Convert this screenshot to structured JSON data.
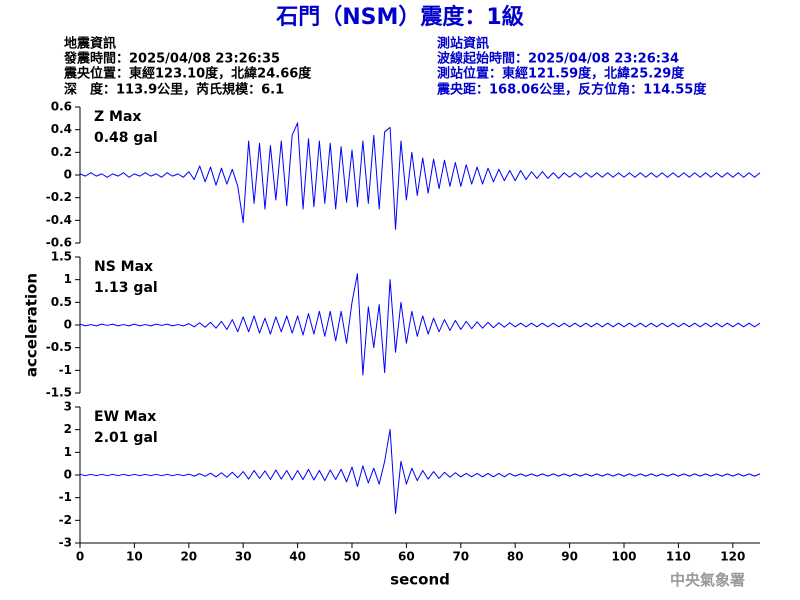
{
  "header": {
    "title": "石門（NSM）震度：1級",
    "quake_info": [
      "地震資訊",
      "發震時間：2025/04/08 23:26:35",
      "震央位置：東經123.10度，北緯24.66度",
      "深　度：113.9公里，芮氏規模：6.1"
    ],
    "station_info": [
      "測站資訊",
      "波線起始時間：2025/04/08 23:26:34",
      "測站位置：東經121.59度，北緯25.29度",
      "震央距：168.06公里，反方位角：114.55度"
    ]
  },
  "footer": "中央氣象署",
  "chart_data": [
    {
      "type": "line",
      "label": "Z Max",
      "max_label": "0.48 gal",
      "color": "#0000ff",
      "xlim": [
        0,
        125
      ],
      "ylim": [
        -0.6,
        0.6
      ],
      "yticks": [
        0.6,
        0.4,
        0.2,
        0,
        -0.2,
        -0.4,
        -0.6
      ],
      "x": [
        0,
        1,
        2,
        3,
        4,
        5,
        6,
        7,
        8,
        9,
        10,
        11,
        12,
        13,
        14,
        15,
        16,
        17,
        18,
        19,
        20,
        21,
        22,
        23,
        24,
        25,
        26,
        27,
        28,
        29,
        30,
        31,
        32,
        33,
        34,
        35,
        36,
        37,
        38,
        39,
        40,
        41,
        42,
        43,
        44,
        45,
        46,
        47,
        48,
        49,
        50,
        51,
        52,
        53,
        54,
        55,
        56,
        57,
        58,
        59,
        60,
        61,
        62,
        63,
        64,
        65,
        66,
        67,
        68,
        69,
        70,
        71,
        72,
        73,
        74,
        75,
        76,
        77,
        78,
        79,
        80,
        81,
        82,
        83,
        84,
        85,
        86,
        87,
        88,
        89,
        90,
        91,
        92,
        93,
        94,
        95,
        96,
        97,
        98,
        99,
        100,
        101,
        102,
        103,
        104,
        105,
        106,
        107,
        108,
        109,
        110,
        111,
        112,
        113,
        114,
        115,
        116,
        117,
        118,
        119,
        120,
        121,
        122,
        123,
        124,
        125
      ],
      "values": [
        0.01,
        -0.01,
        0.02,
        -0.01,
        0.01,
        -0.02,
        0.01,
        -0.01,
        0.02,
        -0.02,
        0.01,
        -0.01,
        0.02,
        -0.01,
        0.01,
        -0.02,
        0.02,
        -0.01,
        0.01,
        -0.02,
        0.03,
        -0.04,
        0.08,
        -0.06,
        0.07,
        -0.09,
        0.06,
        -0.08,
        0.05,
        -0.1,
        -0.42,
        0.3,
        -0.25,
        0.28,
        -0.3,
        0.26,
        -0.22,
        0.3,
        -0.27,
        0.35,
        0.46,
        -0.3,
        0.32,
        -0.28,
        0.3,
        -0.25,
        0.28,
        -0.3,
        0.25,
        -0.24,
        0.22,
        -0.28,
        0.3,
        -0.25,
        0.35,
        -0.3,
        0.38,
        0.42,
        -0.48,
        0.3,
        -0.22,
        0.2,
        -0.18,
        0.15,
        -0.16,
        0.14,
        -0.12,
        0.13,
        -0.1,
        0.11,
        -0.1,
        0.09,
        -0.08,
        0.07,
        -0.08,
        0.06,
        -0.06,
        0.05,
        -0.05,
        0.04,
        -0.05,
        0.04,
        -0.04,
        0.03,
        -0.03,
        0.03,
        -0.03,
        0.02,
        -0.03,
        0.02,
        -0.02,
        0.02,
        -0.02,
        0.02,
        -0.02,
        0.02,
        -0.02,
        0.02,
        -0.02,
        0.02,
        -0.02,
        0.02,
        -0.02,
        0.02,
        -0.02,
        0.02,
        -0.02,
        0.02,
        -0.02,
        0.02,
        -0.02,
        0.02,
        -0.02,
        0.02,
        -0.02,
        0.02,
        -0.02,
        0.02,
        -0.02,
        0.02,
        -0.02,
        0.02,
        -0.02,
        0.02,
        -0.02,
        0.02
      ]
    },
    {
      "type": "line",
      "label": "NS Max",
      "max_label": "1.13 gal",
      "color": "#0000ff",
      "ylabel": "acceleration",
      "xlim": [
        0,
        125
      ],
      "ylim": [
        -1.5,
        1.5
      ],
      "yticks": [
        1.5,
        1,
        0.5,
        0,
        -0.5,
        -1,
        -1.5
      ],
      "x": [
        0,
        1,
        2,
        3,
        4,
        5,
        6,
        7,
        8,
        9,
        10,
        11,
        12,
        13,
        14,
        15,
        16,
        17,
        18,
        19,
        20,
        21,
        22,
        23,
        24,
        25,
        26,
        27,
        28,
        29,
        30,
        31,
        32,
        33,
        34,
        35,
        36,
        37,
        38,
        39,
        40,
        41,
        42,
        43,
        44,
        45,
        46,
        47,
        48,
        49,
        50,
        51,
        52,
        53,
        54,
        55,
        56,
        57,
        58,
        59,
        60,
        61,
        62,
        63,
        64,
        65,
        66,
        67,
        68,
        69,
        70,
        71,
        72,
        73,
        74,
        75,
        76,
        77,
        78,
        79,
        80,
        81,
        82,
        83,
        84,
        85,
        86,
        87,
        88,
        89,
        90,
        91,
        92,
        93,
        94,
        95,
        96,
        97,
        98,
        99,
        100,
        101,
        102,
        103,
        104,
        105,
        106,
        107,
        108,
        109,
        110,
        111,
        112,
        113,
        114,
        115,
        116,
        117,
        118,
        119,
        120,
        121,
        122,
        123,
        124,
        125
      ],
      "values": [
        0.02,
        -0.02,
        0.01,
        -0.02,
        0.02,
        -0.01,
        0.02,
        -0.02,
        0.01,
        -0.02,
        0.02,
        -0.02,
        0.01,
        -0.02,
        0.02,
        -0.01,
        0.02,
        -0.02,
        0.01,
        -0.02,
        0.03,
        -0.04,
        0.05,
        -0.05,
        0.06,
        -0.07,
        0.08,
        -0.1,
        0.12,
        -0.15,
        0.18,
        -0.15,
        0.2,
        -0.18,
        0.15,
        -0.2,
        0.18,
        -0.15,
        0.2,
        -0.18,
        0.2,
        -0.22,
        0.25,
        -0.2,
        0.3,
        -0.25,
        0.3,
        -0.35,
        0.3,
        -0.4,
        0.5,
        1.13,
        -1.1,
        0.4,
        -0.5,
        0.45,
        -1.05,
        1.0,
        -0.6,
        0.5,
        -0.4,
        0.3,
        -0.25,
        0.2,
        -0.2,
        0.15,
        -0.15,
        0.12,
        -0.12,
        0.1,
        -0.1,
        0.08,
        -0.08,
        0.07,
        -0.07,
        0.06,
        -0.06,
        0.05,
        -0.05,
        0.05,
        -0.04,
        0.04,
        -0.04,
        0.04,
        -0.04,
        0.04,
        -0.04,
        0.04,
        -0.04,
        0.04,
        -0.04,
        0.04,
        -0.04,
        0.04,
        -0.04,
        0.04,
        -0.04,
        0.04,
        -0.04,
        0.04,
        -0.04,
        0.04,
        -0.04,
        0.04,
        -0.04,
        0.04,
        -0.04,
        0.04,
        -0.04,
        0.04,
        -0.04,
        0.04,
        -0.04,
        0.04,
        -0.04,
        0.04,
        -0.04,
        0.04,
        -0.04,
        0.04,
        -0.04,
        0.04,
        -0.04,
        0.04,
        -0.04,
        0.04
      ]
    },
    {
      "type": "line",
      "label": "EW Max",
      "max_label": "2.01 gal",
      "color": "#0000ff",
      "xlabel": "second",
      "xlim": [
        0,
        125
      ],
      "xticks": [
        0,
        10,
        20,
        30,
        40,
        50,
        60,
        70,
        80,
        90,
        100,
        110,
        120
      ],
      "ylim": [
        -3,
        3
      ],
      "yticks": [
        3,
        2,
        1,
        0,
        -1,
        -2,
        -3
      ],
      "x": [
        0,
        1,
        2,
        3,
        4,
        5,
        6,
        7,
        8,
        9,
        10,
        11,
        12,
        13,
        14,
        15,
        16,
        17,
        18,
        19,
        20,
        21,
        22,
        23,
        24,
        25,
        26,
        27,
        28,
        29,
        30,
        31,
        32,
        33,
        34,
        35,
        36,
        37,
        38,
        39,
        40,
        41,
        42,
        43,
        44,
        45,
        46,
        47,
        48,
        49,
        50,
        51,
        52,
        53,
        54,
        55,
        56,
        57,
        58,
        59,
        60,
        61,
        62,
        63,
        64,
        65,
        66,
        67,
        68,
        69,
        70,
        71,
        72,
        73,
        74,
        75,
        76,
        77,
        78,
        79,
        80,
        81,
        82,
        83,
        84,
        85,
        86,
        87,
        88,
        89,
        90,
        91,
        92,
        93,
        94,
        95,
        96,
        97,
        98,
        99,
        100,
        101,
        102,
        103,
        104,
        105,
        106,
        107,
        108,
        109,
        110,
        111,
        112,
        113,
        114,
        115,
        116,
        117,
        118,
        119,
        120,
        121,
        122,
        123,
        124,
        125
      ],
      "values": [
        0.03,
        -0.03,
        0.03,
        -0.03,
        0.03,
        -0.03,
        0.03,
        -0.03,
        0.03,
        -0.03,
        0.03,
        -0.03,
        0.03,
        -0.03,
        0.03,
        -0.03,
        0.03,
        -0.03,
        0.03,
        -0.03,
        0.04,
        -0.05,
        0.06,
        -0.06,
        0.08,
        -0.08,
        0.1,
        -0.1,
        0.12,
        -0.12,
        0.15,
        -0.18,
        0.2,
        -0.15,
        0.18,
        -0.2,
        0.22,
        -0.18,
        0.2,
        -0.22,
        0.2,
        -0.2,
        0.25,
        -0.22,
        0.2,
        -0.25,
        0.22,
        -0.2,
        0.25,
        -0.3,
        0.35,
        -0.5,
        0.4,
        -0.35,
        0.3,
        -0.4,
        0.6,
        2.01,
        -1.7,
        0.6,
        -0.4,
        0.3,
        -0.25,
        0.2,
        -0.18,
        0.15,
        -0.15,
        0.12,
        -0.1,
        0.1,
        -0.08,
        0.07,
        -0.08,
        0.07,
        -0.08,
        0.07,
        -0.08,
        0.07,
        -0.08,
        0.07,
        -0.05,
        0.05,
        -0.05,
        0.05,
        -0.05,
        0.05,
        -0.05,
        0.05,
        -0.05,
        0.05,
        -0.05,
        0.05,
        -0.05,
        0.05,
        -0.05,
        0.05,
        -0.05,
        0.05,
        -0.05,
        0.05,
        -0.05,
        0.05,
        -0.05,
        0.05,
        -0.05,
        0.05,
        -0.05,
        0.05,
        -0.05,
        0.05,
        -0.05,
        0.05,
        -0.05,
        0.05,
        -0.05,
        0.05,
        -0.05,
        0.05,
        -0.05,
        0.05,
        -0.05,
        0.05,
        -0.05,
        0.05,
        -0.05,
        0.05
      ]
    }
  ]
}
